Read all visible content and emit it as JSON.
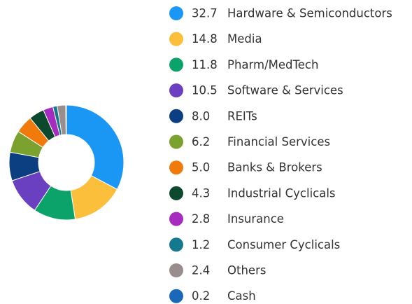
{
  "chart_data": {
    "type": "donut",
    "categories": [
      "Hardware & Semiconductors",
      "Media",
      "Pharm/MedTech",
      "Software & Services",
      "REITs",
      "Financial Services",
      "Banks & Brokers",
      "Industrial Cyclicals",
      "Insurance",
      "Consumer Cyclicals",
      "Others",
      "Cash"
    ],
    "values": [
      32.7,
      14.8,
      11.8,
      10.5,
      8.0,
      6.2,
      5.0,
      4.3,
      2.8,
      1.2,
      2.4,
      0.2
    ],
    "value_labels": [
      "32.7",
      "14.8",
      "11.8",
      "10.5",
      "8.0",
      "6.2",
      "5.0",
      "4.3",
      "2.8",
      "1.2",
      "2.4",
      "0.2"
    ],
    "colors": [
      "#1a96f5",
      "#fbbf3b",
      "#0ba36a",
      "#6a3fc0",
      "#0b3f82",
      "#7ba12e",
      "#f07b0c",
      "#0d4a2d",
      "#a62bbf",
      "#14788e",
      "#9a8d8d",
      "#1a69b8"
    ],
    "legend": "right"
  }
}
